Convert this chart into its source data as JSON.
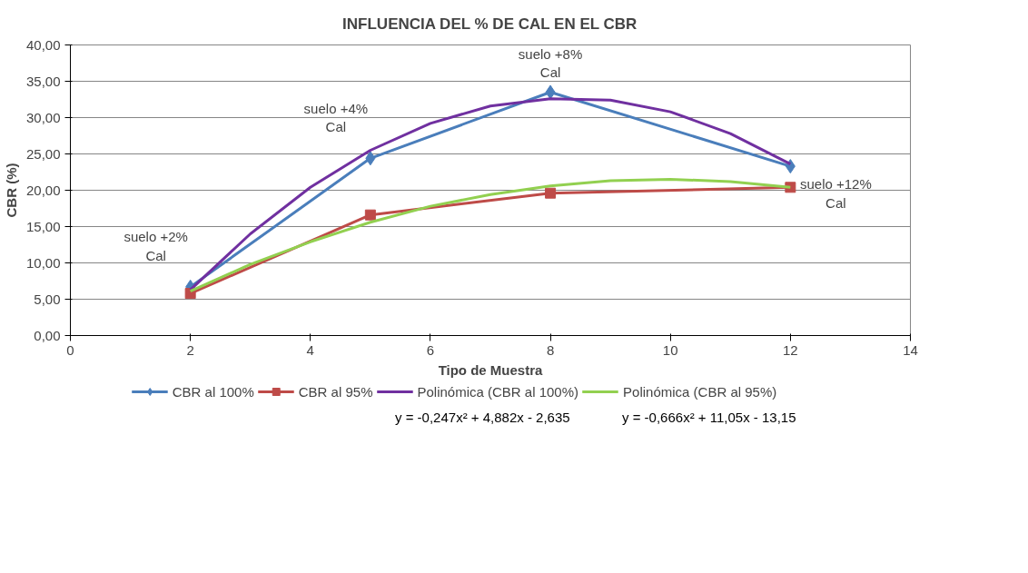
{
  "chart_data": {
    "type": "line",
    "title": "INFLUENCIA DEL % DE CAL EN EL CBR",
    "xlabel": "Tipo de Muestra",
    "ylabel": "CBR (%)",
    "xlim": [
      0,
      14
    ],
    "xticks": [
      0,
      2,
      4,
      6,
      8,
      10,
      12,
      14
    ],
    "ylim": [
      0,
      40
    ],
    "yticks": [
      {
        "value": 0,
        "label": "0,00"
      },
      {
        "value": 5,
        "label": "5,00"
      },
      {
        "value": 10,
        "label": "10,00"
      },
      {
        "value": 15,
        "label": "15,00"
      },
      {
        "value": 20,
        "label": "20,00"
      },
      {
        "value": 25,
        "label": "25,00"
      },
      {
        "value": 30,
        "label": "30,00"
      },
      {
        "value": 35,
        "label": "35,00"
      },
      {
        "value": 40,
        "label": "40,00"
      }
    ],
    "grid": "y",
    "legend": "bottom",
    "line_style": "solid",
    "series": [
      {
        "name": "CBR al 100%",
        "color": "#4a7ebb",
        "marker": "diamond",
        "x": [
          2,
          5,
          8,
          12
        ],
        "values": [
          6.7,
          24.4,
          33.5,
          23.3
        ]
      },
      {
        "name": "CBR al 95%",
        "color": "#be4b48",
        "marker": "square",
        "x": [
          2,
          5,
          8,
          12
        ],
        "values": [
          5.8,
          16.6,
          19.6,
          20.4
        ]
      },
      {
        "name": "Polinómica (CBR al 100%)",
        "color": "#7030a0",
        "marker": "none",
        "x": [
          2,
          3,
          4,
          5,
          6,
          7,
          8,
          9,
          10,
          11,
          12
        ],
        "values": [
          6.3,
          14.0,
          20.4,
          25.5,
          29.2,
          31.6,
          32.6,
          32.4,
          30.8,
          27.8,
          23.6
        ]
      },
      {
        "name": "Polinómica (CBR al 95%)",
        "color": "#92d050",
        "marker": "none",
        "x": [
          2,
          3,
          4,
          5,
          6,
          7,
          8,
          9,
          10,
          11,
          12
        ],
        "values": [
          6.1,
          9.8,
          12.9,
          15.6,
          17.8,
          19.4,
          20.6,
          21.3,
          21.5,
          21.2,
          20.4
        ]
      }
    ],
    "annotations": [
      {
        "text": "suelo +2%\nCal",
        "x": 2,
        "y": 6.7
      },
      {
        "text": "suelo +4%\nCal",
        "x": 5,
        "y": 24.4
      },
      {
        "text": "suelo +8%\nCal",
        "x": 8,
        "y": 33.5
      },
      {
        "text": "suelo +12%\nCal",
        "x": 12,
        "y": 23.3
      },
      "y = -0,247x² + 4,882x - 2,635",
      "y = -0,666x² + 11,05x - 13,15"
    ]
  }
}
